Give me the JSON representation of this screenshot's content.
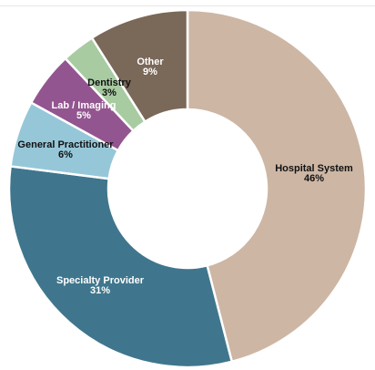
{
  "chart_data": {
    "type": "pie",
    "donut": true,
    "slices": [
      {
        "label": "Hospital System",
        "value_label": "46%",
        "value": 46.0,
        "color": "#cdb6a4",
        "text_color": "#111111"
      },
      {
        "label": "Specialty Provider",
        "value_label": "31%",
        "value": 31.0,
        "color": "#3f768d",
        "text_color": "#ffffff"
      },
      {
        "label": "General Practitioner",
        "value_label": "6%",
        "value": 6.0,
        "color": "#96c7d8",
        "text_color": "#111111"
      },
      {
        "label": "Lab / Imaging",
        "value_label": "5%",
        "value": 5.0,
        "color": "#93558f",
        "text_color": "#ffffff"
      },
      {
        "label": "Dentistry",
        "value_label": "3%",
        "value": 3.0,
        "color": "#a8cba2",
        "text_color": "#111111"
      },
      {
        "label": "Other",
        "value_label": "9%",
        "value": 9.0,
        "color": "#7a6858",
        "text_color": "#ffffff"
      }
    ]
  }
}
